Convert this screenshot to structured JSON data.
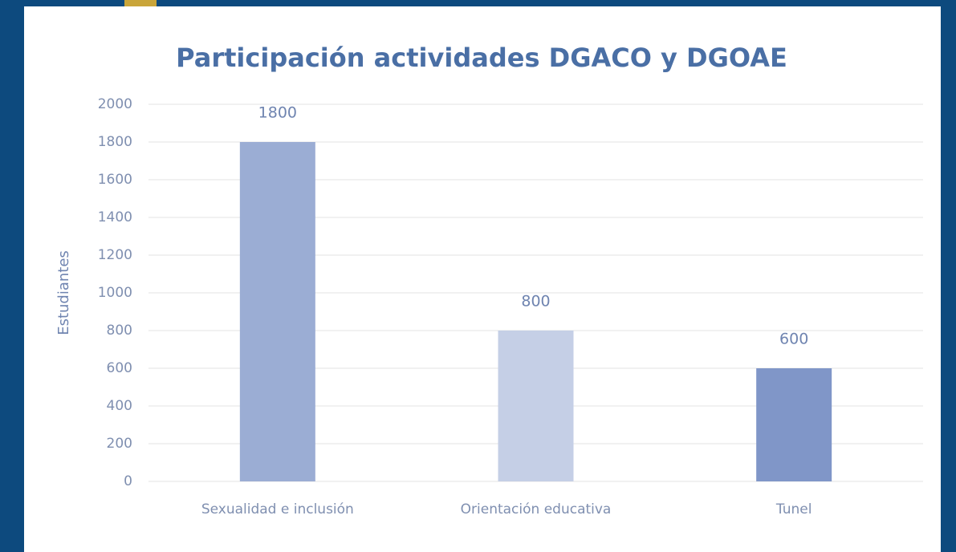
{
  "chart_data": {
    "type": "bar",
    "title": "Participación actividades DGACO y DGOAE",
    "y_label": "Estudiantes",
    "categories": [
      "Sexualidad e inclusión",
      "Orientación educativa",
      "Tunel"
    ],
    "values": [
      1800,
      800,
      600
    ],
    "colors": [
      "#9badd4",
      "#c5cfe6",
      "#8096c8"
    ],
    "ylim": [
      0,
      2000
    ],
    "yticks": [
      0,
      200,
      400,
      600,
      800,
      1000,
      1200,
      1400,
      1600,
      1800,
      2000
    ],
    "grid": true
  }
}
